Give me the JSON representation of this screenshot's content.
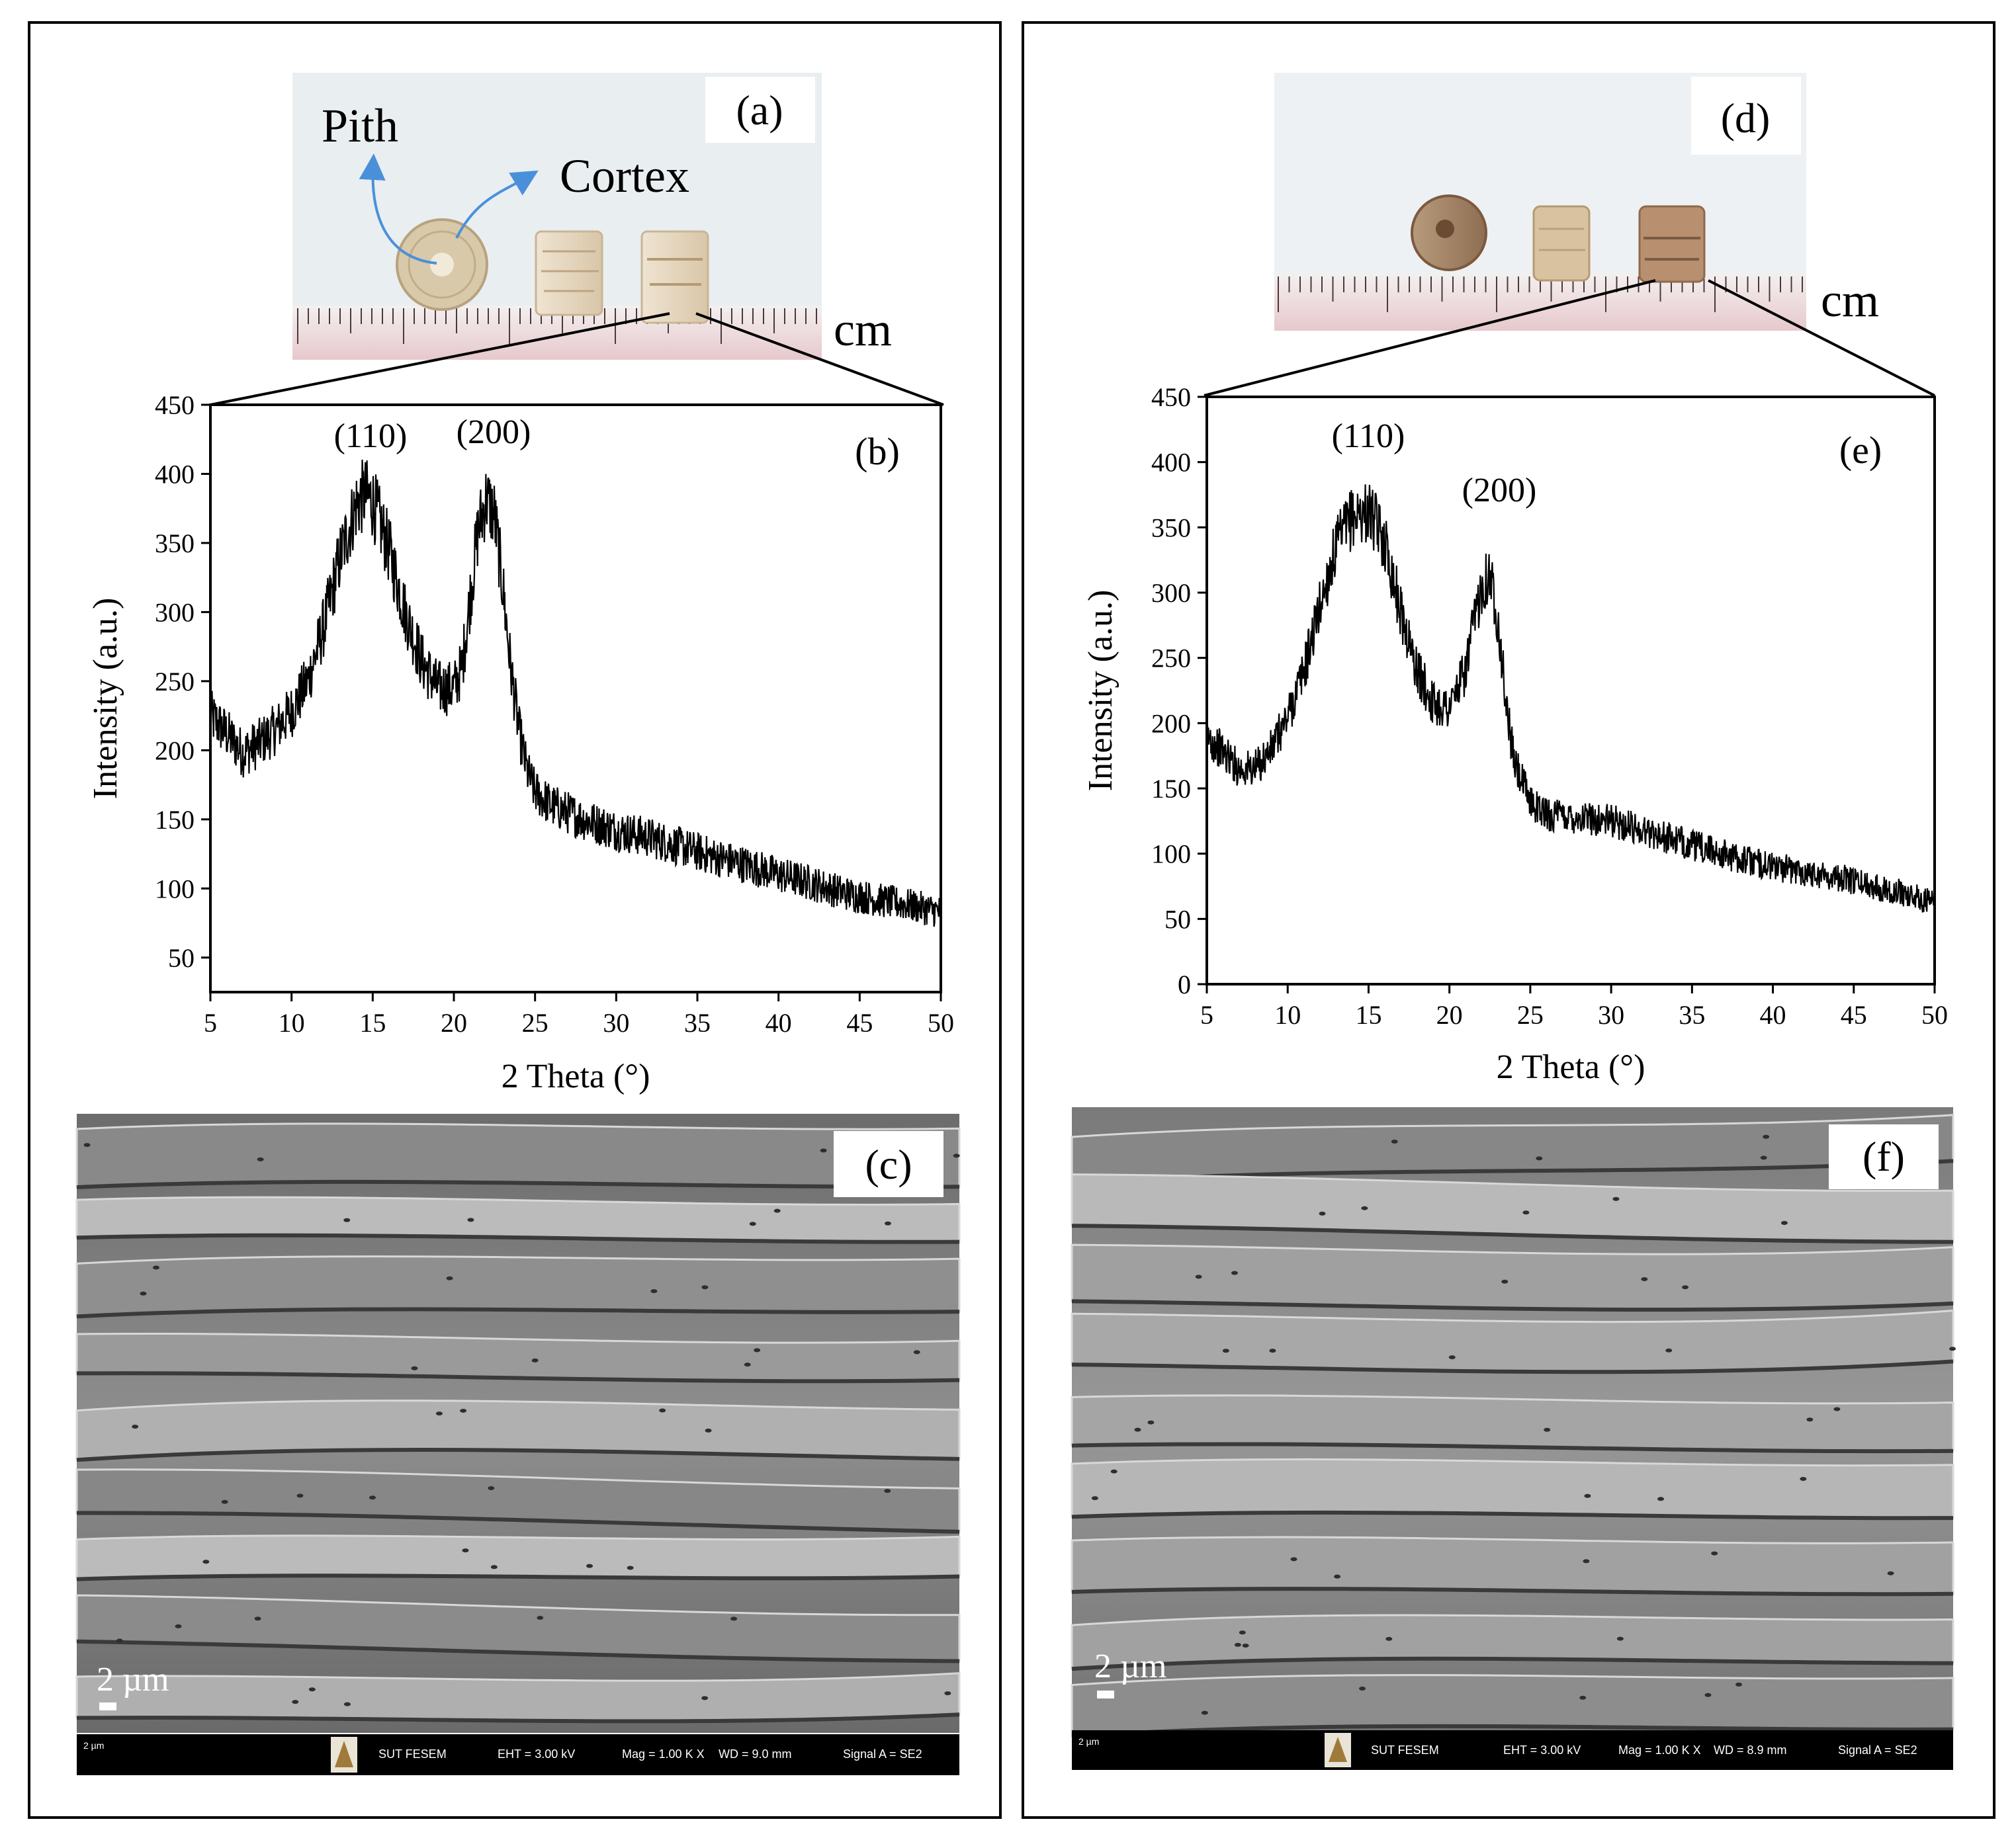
{
  "panels": {
    "a": {
      "letter": "(a)",
      "pith": "Pith",
      "cortex": "Cortex",
      "unit": "cm"
    },
    "d": {
      "letter": "(d)",
      "unit": "cm"
    },
    "c": {
      "letter": "(c)",
      "scale": "2 µm",
      "bar": {
        "scale": "2 µm",
        "inst": "SUT FESEM",
        "eht": "EHT = 3.00 kV",
        "mag": "Mag = 1.00 K X",
        "wd": "WD = 9.0 mm",
        "sig": "Signal A = SE2"
      }
    },
    "f": {
      "letter": "(f)",
      "scale": "2 µm",
      "bar": {
        "scale": "2 µm",
        "inst": "SUT FESEM",
        "eht": "EHT = 3.00 kV",
        "mag": "Mag = 1.00 K X",
        "wd": "WD = 8.9 mm",
        "sig": "Signal A = SE2"
      }
    }
  },
  "colors": {
    "trace": "#000000",
    "frame": "#000000",
    "arrow": "#4a90d9",
    "photo_bg": "#e9eef1",
    "sem_gray": "#8a8a8a"
  },
  "chart_data": [
    {
      "panel": "(b)",
      "type": "line",
      "xlabel": "2 Theta (°)",
      "ylabel": "Intensity (a.u.)",
      "xlim": [
        5,
        50
      ],
      "ylim": [
        25,
        450
      ],
      "xticks": [
        5,
        10,
        15,
        20,
        25,
        30,
        35,
        40,
        45,
        50
      ],
      "yticks": [
        50,
        100,
        150,
        200,
        250,
        300,
        350,
        400,
        450
      ],
      "noise": 22,
      "peaks": [
        {
          "label": "(110)",
          "x": 14.5,
          "y": 412
        },
        {
          "label": "(200)",
          "x": 22.2,
          "y": 412
        }
      ],
      "x": [
        5,
        6,
        7,
        8,
        9,
        10,
        11,
        12,
        13,
        14,
        14.5,
        15,
        16,
        17,
        18,
        19,
        20,
        20.5,
        21,
        21.5,
        22,
        22.5,
        23,
        23.5,
        24,
        24.5,
        25,
        26,
        27,
        28,
        30,
        32,
        34,
        36,
        38,
        40,
        42,
        44,
        46,
        48,
        50
      ],
      "y": [
        225,
        212,
        198,
        205,
        215,
        228,
        250,
        290,
        340,
        378,
        385,
        380,
        345,
        300,
        265,
        245,
        245,
        260,
        310,
        360,
        382,
        370,
        320,
        260,
        215,
        185,
        170,
        160,
        155,
        150,
        142,
        137,
        130,
        123,
        117,
        110,
        104,
        97,
        92,
        88,
        83
      ]
    },
    {
      "panel": "(e)",
      "type": "line",
      "xlabel": "2 Theta (°)",
      "ylabel": "Intensity (a.u.)",
      "xlim": [
        5,
        50
      ],
      "ylim": [
        0,
        450
      ],
      "xticks": [
        5,
        10,
        15,
        20,
        25,
        30,
        35,
        40,
        45,
        50
      ],
      "yticks": [
        0,
        50,
        100,
        150,
        200,
        250,
        300,
        350,
        400,
        450
      ],
      "noise": 20,
      "peaks": [
        {
          "label": "(110)",
          "x": 15,
          "y": 402
        },
        {
          "label": "(200)",
          "x": 22.6,
          "y": 357
        }
      ],
      "x": [
        5,
        6,
        7,
        8,
        9,
        10,
        11,
        12,
        13,
        14,
        15,
        16,
        17,
        18,
        19,
        20,
        21,
        21.5,
        22,
        22.5,
        23,
        23.5,
        24,
        25,
        26,
        28,
        30,
        32,
        34,
        36,
        38,
        40,
        42,
        44,
        46,
        48,
        50
      ],
      "y": [
        190,
        178,
        165,
        165,
        180,
        205,
        240,
        290,
        335,
        358,
        362,
        340,
        285,
        240,
        215,
        212,
        240,
        275,
        305,
        315,
        280,
        215,
        170,
        140,
        130,
        128,
        125,
        118,
        110,
        103,
        96,
        90,
        86,
        82,
        76,
        70,
        62
      ]
    }
  ]
}
